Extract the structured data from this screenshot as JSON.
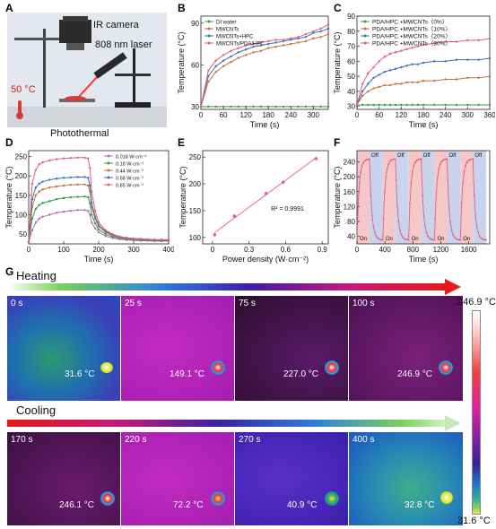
{
  "panels": {
    "A": "A",
    "B": "B",
    "C": "C",
    "D": "D",
    "E": "E",
    "F": "F",
    "G": "G"
  },
  "panelA": {
    "camera": "IR  camera",
    "laser": "808 nm laser",
    "temp": "50 °C",
    "caption": "Photothermal"
  },
  "chart_data": [
    {
      "id": "B",
      "type": "line",
      "title": "",
      "xlabel": "Time (s)",
      "ylabel": "Temperature (°C)",
      "xlim": [
        0,
        340
      ],
      "ylim": [
        28,
        95
      ],
      "xticks": [
        0,
        60,
        120,
        180,
        240,
        300
      ],
      "yticks": [
        30,
        60,
        90
      ],
      "x": [
        0,
        20,
        40,
        60,
        80,
        100,
        120,
        140,
        160,
        180,
        200,
        220,
        240,
        260,
        280,
        300,
        320,
        340
      ],
      "legend_position": "top-left",
      "series": [
        {
          "name": "DI water",
          "color": "#2e9e3a",
          "values": [
            30,
            30,
            30,
            30,
            30,
            30,
            30,
            30,
            30,
            30,
            30,
            30,
            30,
            30,
            30,
            30,
            30,
            30
          ]
        },
        {
          "name": "MWCNTs",
          "color": "#c87137",
          "values": [
            30,
            48,
            55,
            59,
            62,
            65,
            67,
            69,
            70,
            72,
            73,
            74,
            75,
            76,
            77,
            79,
            80,
            82
          ]
        },
        {
          "name": "MWCNTs+HPC",
          "color": "#3b6fb6",
          "values": [
            30,
            52,
            59,
            63,
            66,
            69,
            71,
            73,
            74,
            75,
            76,
            77,
            78,
            79,
            80,
            83,
            84,
            86
          ]
        },
        {
          "name": "MWCNTs/PDA/HPC",
          "color": "#e0607a",
          "values": [
            30,
            56,
            63,
            67,
            70,
            72,
            74,
            75,
            76,
            77,
            78,
            78,
            79,
            80,
            82,
            84,
            86,
            89
          ]
        }
      ]
    },
    {
      "id": "C",
      "type": "line",
      "title": "",
      "xlabel": "Time (s)",
      "ylabel": "Temperature (°C)",
      "xlim": [
        0,
        360
      ],
      "ylim": [
        28,
        90
      ],
      "xticks": [
        0,
        60,
        120,
        180,
        240,
        300,
        360
      ],
      "yticks": [
        30,
        40,
        50,
        60,
        70,
        80,
        90
      ],
      "x": [
        0,
        15,
        30,
        45,
        60,
        75,
        90,
        105,
        120,
        135,
        150,
        165,
        180,
        210,
        240,
        270,
        300,
        330,
        360
      ],
      "legend_position": "top-left",
      "series": [
        {
          "name": "PDA/HPC +MWCNTs（0%）",
          "color": "#2e9e3a",
          "values": [
            31,
            31,
            31,
            31,
            31,
            31,
            31,
            31,
            31,
            31,
            31,
            31,
            31,
            31,
            31,
            31,
            31,
            31,
            31
          ]
        },
        {
          "name": "PDA/HPC +MWCNTs（10%）",
          "color": "#c87137",
          "values": [
            31,
            37,
            40,
            42,
            43,
            44,
            44,
            45,
            45,
            46,
            46,
            46,
            47,
            47,
            48,
            48,
            49,
            49,
            50
          ]
        },
        {
          "name": "PDA/HPC +MWCNTs（20%）",
          "color": "#3b6fb6",
          "values": [
            31,
            40,
            45,
            49,
            51,
            53,
            54,
            55,
            56,
            57,
            58,
            58,
            59,
            60,
            60,
            61,
            61,
            61,
            62
          ]
        },
        {
          "name": "PDA/HPC +MWCNTs（30%）",
          "color": "#e0607a",
          "values": [
            31,
            45,
            52,
            56,
            60,
            63,
            65,
            66,
            67,
            68,
            69,
            70,
            71,
            72,
            73,
            73,
            74,
            74,
            75
          ]
        }
      ]
    },
    {
      "id": "D",
      "type": "line",
      "title": "",
      "xlabel": "Time (s)",
      "ylabel": "Temperature (°C)",
      "xlim": [
        0,
        400
      ],
      "ylim": [
        25,
        265
      ],
      "xticks": [
        0,
        100,
        200,
        300,
        400
      ],
      "yticks": [
        50,
        100,
        150,
        200,
        250
      ],
      "x": [
        0,
        10,
        20,
        30,
        40,
        60,
        80,
        100,
        120,
        140,
        160,
        170,
        175,
        180,
        190,
        200,
        220,
        240,
        260,
        280,
        300,
        320,
        340,
        360,
        380,
        400
      ],
      "legend_position": "top-right",
      "series": [
        {
          "name": "0.018  W·cm⁻²",
          "color": "#b06ac0",
          "values": [
            30,
            60,
            80,
            90,
            95,
            100,
            105,
            108,
            110,
            112,
            112,
            110,
            100,
            80,
            65,
            55,
            45,
            40,
            37,
            35,
            34,
            33,
            33,
            32,
            32,
            32
          ]
        },
        {
          "name": "0.18   W·cm⁻²",
          "color": "#2e9e3a",
          "values": [
            30,
            90,
            115,
            125,
            130,
            135,
            140,
            143,
            145,
            146,
            147,
            145,
            130,
            100,
            78,
            62,
            50,
            43,
            39,
            37,
            36,
            35,
            34,
            34,
            33,
            33
          ]
        },
        {
          "name": "0.44   W·cm⁻²",
          "color": "#c87137",
          "values": [
            30,
            120,
            150,
            160,
            165,
            170,
            173,
            175,
            177,
            178,
            178,
            175,
            160,
            120,
            90,
            70,
            55,
            46,
            41,
            38,
            37,
            36,
            35,
            35,
            34,
            34
          ]
        },
        {
          "name": "0.58   W·cm⁻²",
          "color": "#3b6fb6",
          "values": [
            30,
            140,
            170,
            180,
            185,
            190,
            193,
            195,
            196,
            197,
            197,
            195,
            175,
            130,
            95,
            73,
            57,
            48,
            43,
            40,
            38,
            37,
            36,
            35,
            35,
            35
          ]
        },
        {
          "name": "0.85   W·cm⁻²",
          "color": "#e0607a",
          "values": [
            30,
            180,
            215,
            230,
            235,
            240,
            243,
            245,
            246,
            247,
            247,
            245,
            220,
            160,
            110,
            80,
            60,
            50,
            44,
            41,
            39,
            38,
            37,
            36,
            36,
            36
          ]
        }
      ]
    },
    {
      "id": "E",
      "type": "scatter",
      "title": "",
      "xlabel": "Power density  (W·cm⁻²)",
      "ylabel": "Temperature (°C)",
      "xlim": [
        -0.08,
        0.95
      ],
      "ylim": [
        88,
        262
      ],
      "xticks": [
        0.0,
        0.3,
        0.6,
        0.9
      ],
      "yticks": [
        100,
        150,
        200,
        250
      ],
      "x": [
        0.018,
        0.18,
        0.44,
        0.58,
        0.85
      ],
      "values": [
        105,
        140,
        182,
        203,
        247
      ],
      "annotation": "R² = 0.9991",
      "color": "#e0607a"
    },
    {
      "id": "F",
      "type": "line",
      "title": "",
      "xlabel": "Time (s)",
      "ylabel": "Temperature (°C)",
      "xlim": [
        0,
        1900
      ],
      "ylim": [
        20,
        270
      ],
      "xticks": [
        0,
        400,
        800,
        1200,
        1600
      ],
      "yticks": [
        40,
        80,
        120,
        160,
        200,
        240
      ],
      "on_label": "On",
      "off_label": "Off",
      "cycles": [
        [
          0,
          180,
          370
        ],
        [
          370,
          550,
          740
        ],
        [
          740,
          920,
          1110
        ],
        [
          1110,
          1290,
          1480
        ],
        [
          1480,
          1660,
          1850
        ]
      ],
      "peak": 248,
      "base": 30,
      "color": "#e0607a"
    }
  ],
  "panelG": {
    "heating_label": "Heating",
    "cooling_label": "Cooling",
    "scale_max": "246.9 °C",
    "scale_min": "31.6 °C",
    "heating": [
      {
        "time": "0 s",
        "temp": "31.6 °C"
      },
      {
        "time": "25 s",
        "temp": "149.1 °C"
      },
      {
        "time": "75 s",
        "temp": "227.0 °C"
      },
      {
        "time": "100 s",
        "temp": "246.9 °C"
      }
    ],
    "cooling": [
      {
        "time": "170 s",
        "temp": "246.1 °C"
      },
      {
        "time": "220 s",
        "temp": "72.2 °C"
      },
      {
        "time": "270 s",
        "temp": "40.9 °C"
      },
      {
        "time": "400 s",
        "temp": "32.8 °C"
      }
    ]
  }
}
